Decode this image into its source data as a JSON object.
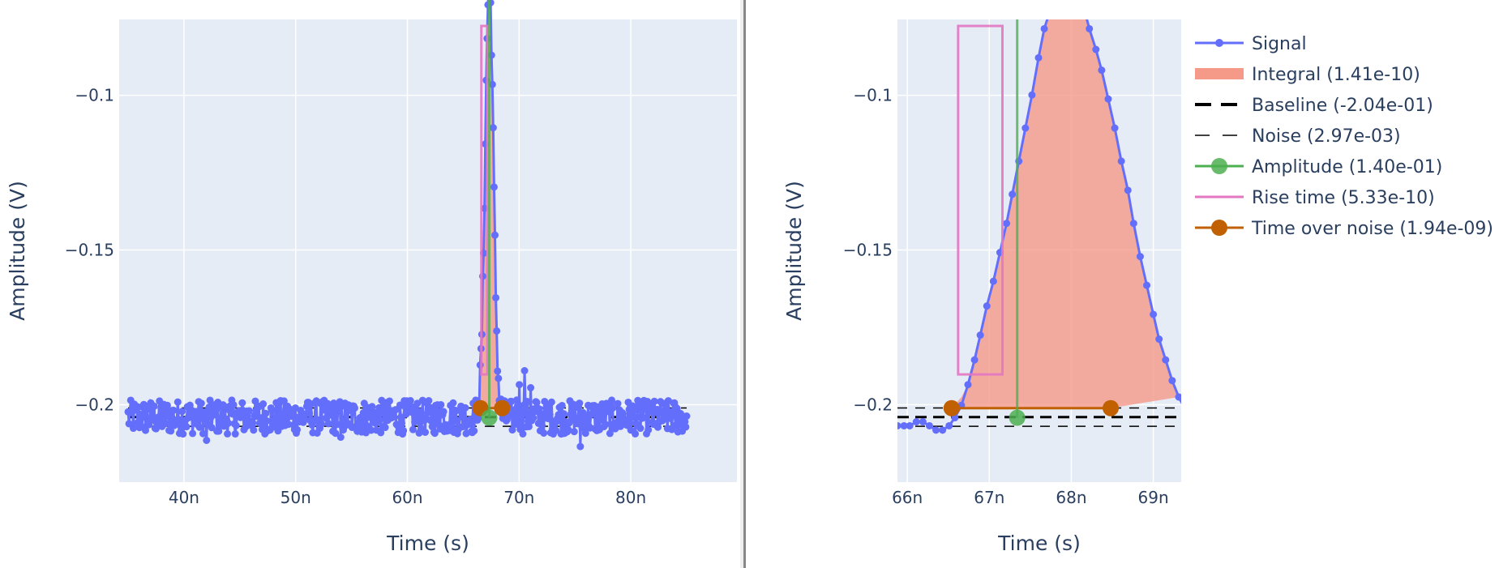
{
  "chart_data": [
    {
      "type": "line",
      "xlabel": "Time (s)",
      "ylabel": "Amplitude (V)",
      "xlim": [
        3.42e-08,
        8.95e-08
      ],
      "ylim": [
        -0.225,
        -0.0755
      ],
      "xticks": [
        {
          "value": 4e-08,
          "label": "40n"
        },
        {
          "value": 5e-08,
          "label": "50n"
        },
        {
          "value": 6e-08,
          "label": "60n"
        },
        {
          "value": 7e-08,
          "label": "70n"
        },
        {
          "value": 8e-08,
          "label": "80n"
        }
      ],
      "yticks": [
        {
          "value": -0.1,
          "label": "−0.1"
        },
        {
          "value": -0.15,
          "label": "−0.15"
        },
        {
          "value": -0.2,
          "label": "−0.2"
        }
      ],
      "grid": true,
      "baseline": -0.204,
      "noise": 0.00297,
      "signal_range": [
        3.5e-08,
        8.5e-08
      ],
      "pulse_start": 6.654e-08,
      "pulse_end": 6.848e-08,
      "peak": {
        "x": 6.733e-08,
        "y": -0.0635
      },
      "amplitude_base": {
        "x": 6.733e-08,
        "y": -0.2042
      },
      "risetime": {
        "x0": 6.662e-08,
        "x1": 6.716e-08,
        "y_low": -0.1902,
        "y_high": -0.0776
      },
      "time_over_noise": {
        "x": [
          6.654e-08,
          6.848e-08
        ],
        "y": -0.2011
      },
      "features": [
        {
          "x": 5.1e-08,
          "y": -0.2005
        },
        {
          "x": 6.3e-08,
          "y": -0.2
        },
        {
          "x": 6.98e-08,
          "y": -0.1985
        },
        {
          "x": 7e-08,
          "y": -0.1935
        },
        {
          "x": 7.05e-08,
          "y": -0.189
        },
        {
          "x": 7.1e-08,
          "y": -0.1945
        },
        {
          "x": 7.15e-08,
          "y": -0.199
        },
        {
          "x": 7.55e-08,
          "y": -0.2135
        },
        {
          "x": 4.2e-08,
          "y": -0.2115
        },
        {
          "x": 5.4e-08,
          "y": -0.2105
        }
      ]
    },
    {
      "type": "line",
      "xlabel": "Time (s)",
      "ylabel": "Amplitude (V)",
      "xlim": [
        6.588e-08,
        6.934e-08
      ],
      "ylim": [
        -0.225,
        -0.0755
      ],
      "xticks": [
        {
          "value": 6.6e-08,
          "label": "66n"
        },
        {
          "value": 6.7e-08,
          "label": "67n"
        },
        {
          "value": 6.8e-08,
          "label": "68n"
        },
        {
          "value": 6.9e-08,
          "label": "69n"
        }
      ],
      "yticks": [
        {
          "value": -0.1,
          "label": "−0.1"
        },
        {
          "value": -0.15,
          "label": "−0.15"
        },
        {
          "value": -0.2,
          "label": "−0.2"
        }
      ],
      "grid": true,
      "legend_position": "right",
      "legend": [
        {
          "key": "signal",
          "label": "Signal",
          "color": "#636efa"
        },
        {
          "key": "integral",
          "label": "Integral (1.41e-10)",
          "color": "#f59a89"
        },
        {
          "key": "baseline",
          "label": "Baseline (-2.04e-01)",
          "color": "#000000"
        },
        {
          "key": "noise",
          "label": "Noise (2.97e-03)",
          "color": "#000000"
        },
        {
          "key": "amplitude",
          "label": "Amplitude (1.40e-01)",
          "color": "#4caf50"
        },
        {
          "key": "risetime",
          "label": "Rise time (5.33e-10)",
          "color": "#e377c2"
        },
        {
          "key": "ton",
          "label": "Time over noise (1.94e-09)",
          "color": "#c06000"
        }
      ],
      "signal_points": [
        [
          6.588e-08,
          -0.2068
        ],
        [
          6.596e-08,
          -0.2068
        ],
        [
          6.603e-08,
          -0.2068
        ],
        [
          6.611e-08,
          -0.2055
        ],
        [
          6.619e-08,
          -0.2055
        ],
        [
          6.627e-08,
          -0.2068
        ],
        [
          6.635e-08,
          -0.2082
        ],
        [
          6.643e-08,
          -0.2082
        ],
        [
          6.651e-08,
          -0.2068
        ],
        [
          6.658e-08,
          -0.2042
        ],
        [
          6.666e-08,
          -0.2002
        ],
        [
          6.674e-08,
          -0.1935
        ],
        [
          6.682e-08,
          -0.1855
        ],
        [
          6.689e-08,
          -0.1775
        ],
        [
          6.697e-08,
          -0.1681
        ],
        [
          6.705e-08,
          -0.1601
        ],
        [
          6.713e-08,
          -0.1508
        ],
        [
          6.721e-08,
          -0.1414
        ],
        [
          6.728e-08,
          -0.132
        ],
        [
          6.736e-08,
          -0.1213
        ],
        [
          6.744e-08,
          -0.1106
        ],
        [
          6.752e-08,
          -0.0999
        ],
        [
          6.76e-08,
          -0.0879
        ],
        [
          6.767e-08,
          -0.0785
        ],
        [
          6.775e-08,
          -0.0719
        ],
        [
          6.783e-08,
          -0.0665
        ],
        [
          6.791e-08,
          -0.0638
        ],
        [
          6.798e-08,
          -0.0638
        ],
        [
          6.806e-08,
          -0.0665
        ],
        [
          6.814e-08,
          -0.0705
        ],
        [
          6.822e-08,
          -0.0785
        ],
        [
          6.83e-08,
          -0.0852
        ],
        [
          6.837e-08,
          -0.0919
        ],
        [
          6.845e-08,
          -0.1012
        ],
        [
          6.853e-08,
          -0.1106
        ],
        [
          6.861e-08,
          -0.1213
        ],
        [
          6.869e-08,
          -0.1307
        ],
        [
          6.876e-08,
          -0.1414
        ],
        [
          6.884e-08,
          -0.1521
        ],
        [
          6.892e-08,
          -0.1614
        ],
        [
          6.9e-08,
          -0.1708
        ],
        [
          6.907e-08,
          -0.1788
        ],
        [
          6.915e-08,
          -0.1855
        ],
        [
          6.923e-08,
          -0.1922
        ],
        [
          6.931e-08,
          -0.1975
        ],
        [
          6.939e-08,
          -0.2015
        ],
        [
          6.947e-08,
          -0.2042
        ],
        [
          6.954e-08,
          -0.2055
        ]
      ],
      "baseline": -0.204,
      "noise": 0.00297,
      "peak": {
        "x": 6.734e-08,
        "y": -0.0635
      },
      "amplitude_base": {
        "x": 6.734e-08,
        "y": -0.2042
      },
      "risetime": {
        "x0": 6.662e-08,
        "x1": 6.716e-08,
        "y_low": -0.1902,
        "y_high": -0.0776
      },
      "time_over_noise": {
        "x": [
          6.654e-08,
          6.848e-08
        ],
        "y": -0.2011
      },
      "integral_points": [
        [
          6.654e-08,
          -0.2011
        ],
        [
          6.666e-08,
          -0.1975
        ],
        [
          6.674e-08,
          -0.1935
        ],
        [
          6.682e-08,
          -0.1855
        ],
        [
          6.689e-08,
          -0.1775
        ],
        [
          6.697e-08,
          -0.1681
        ],
        [
          6.705e-08,
          -0.1601
        ],
        [
          6.713e-08,
          -0.1508
        ],
        [
          6.721e-08,
          -0.1414
        ],
        [
          6.728e-08,
          -0.132
        ],
        [
          6.736e-08,
          -0.1213
        ],
        [
          6.744e-08,
          -0.1106
        ],
        [
          6.752e-08,
          -0.0999
        ],
        [
          6.76e-08,
          -0.0879
        ],
        [
          6.767e-08,
          -0.0785
        ],
        [
          6.775e-08,
          -0.0719
        ],
        [
          6.783e-08,
          -0.0665
        ],
        [
          6.791e-08,
          -0.0638
        ],
        [
          6.798e-08,
          -0.0638
        ],
        [
          6.806e-08,
          -0.0665
        ],
        [
          6.814e-08,
          -0.0705
        ],
        [
          6.822e-08,
          -0.0785
        ],
        [
          6.83e-08,
          -0.0852
        ],
        [
          6.837e-08,
          -0.0919
        ],
        [
          6.845e-08,
          -0.1012
        ],
        [
          6.853e-08,
          -0.1106
        ],
        [
          6.861e-08,
          -0.1213
        ],
        [
          6.869e-08,
          -0.1307
        ],
        [
          6.876e-08,
          -0.1414
        ],
        [
          6.884e-08,
          -0.1521
        ],
        [
          6.892e-08,
          -0.1614
        ],
        [
          6.9e-08,
          -0.1708
        ],
        [
          6.907e-08,
          -0.1788
        ],
        [
          6.915e-08,
          -0.1855
        ],
        [
          6.923e-08,
          -0.1922
        ],
        [
          6.931e-08,
          -0.1975
        ],
        [
          6.848e-08,
          -0.2011
        ]
      ]
    }
  ]
}
